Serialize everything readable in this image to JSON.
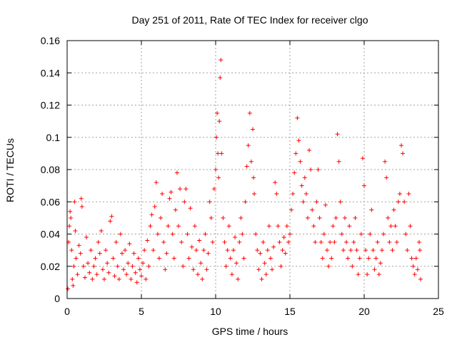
{
  "chart_data": {
    "type": "scatter",
    "title": "Day 251 of 2011, Rate Of TEC Index for receiver clgo",
    "xlabel": "GPS time / hours",
    "ylabel": "ROTI / TECUs",
    "xlim": [
      0,
      25
    ],
    "ylim": [
      0,
      0.16
    ],
    "xticks": [
      0,
      5,
      10,
      15,
      20,
      25
    ],
    "yticks": [
      0,
      0.02,
      0.04,
      0.06,
      0.08,
      0.1,
      0.12,
      0.14,
      0.16
    ],
    "xtick_labels": [
      "0",
      "5",
      "10",
      "15",
      "20",
      "25"
    ],
    "ytick_labels": [
      "0",
      "0.02",
      "0.04",
      "0.06",
      "0.08",
      "0.1",
      "0.12",
      "0.14",
      "0.16"
    ],
    "grid": true,
    "marker": "plus",
    "color": "#ff0000",
    "series": [
      {
        "points": [
          [
            0.05,
            0.006
          ],
          [
            0.1,
            0.035
          ],
          [
            0.15,
            0.045
          ],
          [
            0.2,
            0.054
          ],
          [
            0.25,
            0.05
          ],
          [
            0.3,
            0.03
          ],
          [
            0.35,
            0.012
          ],
          [
            0.4,
            0.008
          ],
          [
            0.45,
            0.02
          ],
          [
            0.5,
            0.06
          ],
          [
            0.55,
            0.042
          ],
          [
            0.6,
            0.025
          ],
          [
            0.7,
            0.015
          ],
          [
            0.8,
            0.033
          ],
          [
            0.9,
            0.028
          ],
          [
            0.95,
            0.062
          ],
          [
            1.0,
            0.057
          ],
          [
            1.1,
            0.02
          ],
          [
            1.2,
            0.013
          ],
          [
            1.3,
            0.038
          ],
          [
            1.4,
            0.022
          ],
          [
            1.5,
            0.016
          ],
          [
            1.6,
            0.03
          ],
          [
            1.7,
            0.012
          ],
          [
            1.8,
            0.02
          ],
          [
            1.9,
            0.025
          ],
          [
            2.0,
            0.015
          ],
          [
            2.1,
            0.035
          ],
          [
            2.2,
            0.028
          ],
          [
            2.3,
            0.042
          ],
          [
            2.4,
            0.018
          ],
          [
            2.5,
            0.012
          ],
          [
            2.6,
            0.03
          ],
          [
            2.7,
            0.022
          ],
          [
            2.8,
            0.016
          ],
          [
            2.9,
            0.048
          ],
          [
            3.0,
            0.051
          ],
          [
            3.1,
            0.025
          ],
          [
            3.2,
            0.014
          ],
          [
            3.3,
            0.035
          ],
          [
            3.4,
            0.02
          ],
          [
            3.5,
            0.012
          ],
          [
            3.6,
            0.04
          ],
          [
            3.7,
            0.028
          ],
          [
            3.8,
            0.018
          ],
          [
            3.9,
            0.03
          ],
          [
            4.0,
            0.015
          ],
          [
            4.1,
            0.022
          ],
          [
            4.2,
            0.034
          ],
          [
            4.3,
            0.012
          ],
          [
            4.4,
            0.02
          ],
          [
            4.5,
            0.028
          ],
          [
            4.6,
            0.016
          ],
          [
            4.7,
            0.01
          ],
          [
            4.8,
            0.025
          ],
          [
            4.9,
            0.018
          ],
          [
            5.0,
            0.014
          ],
          [
            5.1,
            0.022
          ],
          [
            5.2,
            0.03
          ],
          [
            5.3,
            0.012
          ],
          [
            5.4,
            0.036
          ],
          [
            5.5,
            0.02
          ],
          [
            5.6,
            0.045
          ],
          [
            5.7,
            0.052
          ],
          [
            5.8,
            0.03
          ],
          [
            5.9,
            0.057
          ],
          [
            6.0,
            0.072
          ],
          [
            6.1,
            0.04
          ],
          [
            6.2,
            0.025
          ],
          [
            6.3,
            0.05
          ],
          [
            6.4,
            0.065
          ],
          [
            6.5,
            0.035
          ],
          [
            6.6,
            0.018
          ],
          [
            6.7,
            0.028
          ],
          [
            6.8,
            0.045
          ],
          [
            6.9,
            0.062
          ],
          [
            7.0,
            0.066
          ],
          [
            7.1,
            0.04
          ],
          [
            7.2,
            0.025
          ],
          [
            7.3,
            0.055
          ],
          [
            7.4,
            0.078
          ],
          [
            7.5,
            0.045
          ],
          [
            7.6,
            0.068
          ],
          [
            7.7,
            0.035
          ],
          [
            7.8,
            0.02
          ],
          [
            7.9,
            0.06
          ],
          [
            8.0,
            0.068
          ],
          [
            8.1,
            0.04
          ],
          [
            8.2,
            0.025
          ],
          [
            8.3,
            0.056
          ],
          [
            8.4,
            0.032
          ],
          [
            8.5,
            0.018
          ],
          [
            8.6,
            0.045
          ],
          [
            8.7,
            0.03
          ],
          [
            8.8,
            0.015
          ],
          [
            8.9,
            0.036
          ],
          [
            9.0,
            0.022
          ],
          [
            9.1,
            0.012
          ],
          [
            9.2,
            0.03
          ],
          [
            9.3,
            0.04
          ],
          [
            9.4,
            0.018
          ],
          [
            9.5,
            0.028
          ],
          [
            9.6,
            0.06
          ],
          [
            9.7,
            0.05
          ],
          [
            9.8,
            0.035
          ],
          [
            9.9,
            0.068
          ],
          [
            10.0,
            0.08
          ],
          [
            10.05,
            0.1
          ],
          [
            10.1,
            0.115
          ],
          [
            10.15,
            0.09
          ],
          [
            10.2,
            0.075
          ],
          [
            10.25,
            0.11
          ],
          [
            10.3,
            0.137
          ],
          [
            10.35,
            0.148
          ],
          [
            10.4,
            0.09
          ],
          [
            10.5,
            0.05
          ],
          [
            10.6,
            0.035
          ],
          [
            10.7,
            0.02
          ],
          [
            10.8,
            0.03
          ],
          [
            10.9,
            0.045
          ],
          [
            11.0,
            0.025
          ],
          [
            11.1,
            0.015
          ],
          [
            11.2,
            0.03
          ],
          [
            11.3,
            0.038
          ],
          [
            11.4,
            0.022
          ],
          [
            11.5,
            0.012
          ],
          [
            11.6,
            0.035
          ],
          [
            11.7,
            0.05
          ],
          [
            11.8,
            0.04
          ],
          [
            11.9,
            0.025
          ],
          [
            12.0,
            0.06
          ],
          [
            12.1,
            0.082
          ],
          [
            12.2,
            0.095
          ],
          [
            12.3,
            0.115
          ],
          [
            12.4,
            0.085
          ],
          [
            12.5,
            0.105
          ],
          [
            12.55,
            0.075
          ],
          [
            12.6,
            0.065
          ],
          [
            12.7,
            0.04
          ],
          [
            12.8,
            0.03
          ],
          [
            12.9,
            0.018
          ],
          [
            13.0,
            0.028
          ],
          [
            13.1,
            0.012
          ],
          [
            13.2,
            0.035
          ],
          [
            13.3,
            0.022
          ],
          [
            13.4,
            0.015
          ],
          [
            13.5,
            0.03
          ],
          [
            13.6,
            0.045
          ],
          [
            13.7,
            0.025
          ],
          [
            13.8,
            0.018
          ],
          [
            13.9,
            0.032
          ],
          [
            14.0,
            0.072
          ],
          [
            14.1,
            0.065
          ],
          [
            14.2,
            0.045
          ],
          [
            14.3,
            0.035
          ],
          [
            14.4,
            0.02
          ],
          [
            14.5,
            0.03
          ],
          [
            14.6,
            0.038
          ],
          [
            14.7,
            0.028
          ],
          [
            14.8,
            0.045
          ],
          [
            14.9,
            0.035
          ],
          [
            15.0,
            0.04
          ],
          [
            15.1,
            0.055
          ],
          [
            15.2,
            0.065
          ],
          [
            15.3,
            0.078
          ],
          [
            15.4,
            0.09
          ],
          [
            15.5,
            0.112
          ],
          [
            15.6,
            0.098
          ],
          [
            15.7,
            0.085
          ],
          [
            15.8,
            0.07
          ],
          [
            15.9,
            0.06
          ],
          [
            16.0,
            0.075
          ],
          [
            16.1,
            0.065
          ],
          [
            16.2,
            0.05
          ],
          [
            16.3,
            0.092
          ],
          [
            16.4,
            0.08
          ],
          [
            16.5,
            0.055
          ],
          [
            16.6,
            0.045
          ],
          [
            16.7,
            0.035
          ],
          [
            16.8,
            0.06
          ],
          [
            16.9,
            0.08
          ],
          [
            17.0,
            0.05
          ],
          [
            17.1,
            0.035
          ],
          [
            17.2,
            0.025
          ],
          [
            17.3,
            0.04
          ],
          [
            17.4,
            0.058
          ],
          [
            17.5,
            0.03
          ],
          [
            17.6,
            0.02
          ],
          [
            17.7,
            0.035
          ],
          [
            17.8,
            0.025
          ],
          [
            17.9,
            0.045
          ],
          [
            18.0,
            0.035
          ],
          [
            18.1,
            0.05
          ],
          [
            18.2,
            0.102
          ],
          [
            18.3,
            0.085
          ],
          [
            18.4,
            0.06
          ],
          [
            18.5,
            0.04
          ],
          [
            18.6,
            0.03
          ],
          [
            18.7,
            0.05
          ],
          [
            18.8,
            0.035
          ],
          [
            18.9,
            0.025
          ],
          [
            19.0,
            0.045
          ],
          [
            19.1,
            0.03
          ],
          [
            19.2,
            0.02
          ],
          [
            19.3,
            0.035
          ],
          [
            19.4,
            0.05
          ],
          [
            19.5,
            0.03
          ],
          [
            19.6,
            0.015
          ],
          [
            19.7,
            0.025
          ],
          [
            19.8,
            0.04
          ],
          [
            19.9,
            0.087
          ],
          [
            20.0,
            0.07
          ],
          [
            20.1,
            0.03
          ],
          [
            20.2,
            0.015
          ],
          [
            20.3,
            0.025
          ],
          [
            20.4,
            0.04
          ],
          [
            20.5,
            0.055
          ],
          [
            20.6,
            0.03
          ],
          [
            20.7,
            0.018
          ],
          [
            20.8,
            0.025
          ],
          [
            20.9,
            0.035
          ],
          [
            21.0,
            0.015
          ],
          [
            21.1,
            0.022
          ],
          [
            21.2,
            0.03
          ],
          [
            21.3,
            0.04
          ],
          [
            21.4,
            0.085
          ],
          [
            21.5,
            0.075
          ],
          [
            21.6,
            0.05
          ],
          [
            21.7,
            0.035
          ],
          [
            21.8,
            0.045
          ],
          [
            21.9,
            0.03
          ],
          [
            22.0,
            0.055
          ],
          [
            22.1,
            0.045
          ],
          [
            22.2,
            0.035
          ],
          [
            22.3,
            0.06
          ],
          [
            22.4,
            0.065
          ],
          [
            22.5,
            0.095
          ],
          [
            22.6,
            0.09
          ],
          [
            22.7,
            0.06
          ],
          [
            22.8,
            0.04
          ],
          [
            22.9,
            0.03
          ],
          [
            23.0,
            0.065
          ],
          [
            23.1,
            0.045
          ],
          [
            23.2,
            0.025
          ],
          [
            23.3,
            0.02
          ],
          [
            23.4,
            0.015
          ],
          [
            23.5,
            0.025
          ],
          [
            23.6,
            0.018
          ],
          [
            23.7,
            0.035
          ],
          [
            23.75,
            0.03
          ],
          [
            23.8,
            0.012
          ]
        ]
      }
    ]
  }
}
